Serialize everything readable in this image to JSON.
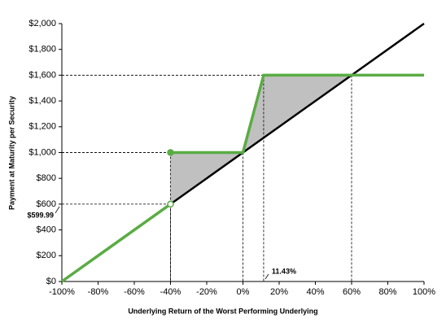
{
  "chart_data": {
    "type": "line",
    "xlabel": "Underlying Return of the Worst Performing Underlying",
    "ylabel": "Payment at Maturity per Security",
    "xlim": [
      -100,
      100
    ],
    "xticks": [
      {
        "value": -100,
        "label": "-100%"
      },
      {
        "value": -80,
        "label": "-80%"
      },
      {
        "value": -60,
        "label": "-60%"
      },
      {
        "value": -40,
        "label": "-40%"
      },
      {
        "value": -20,
        "label": "-20%"
      },
      {
        "value": 0,
        "label": "0%"
      },
      {
        "value": 20,
        "label": "20%"
      },
      {
        "value": 40,
        "label": "40%"
      },
      {
        "value": 60,
        "label": "60%"
      },
      {
        "value": 80,
        "label": "80%"
      },
      {
        "value": 100,
        "label": "100%"
      }
    ],
    "ylim": [
      0,
      2000
    ],
    "yticks": [
      {
        "value": 0,
        "label": "$0"
      },
      {
        "value": 200,
        "label": "$200"
      },
      {
        "value": 400,
        "label": "$400"
      },
      {
        "value": 600,
        "label": "$600"
      },
      {
        "value": 800,
        "label": "$800"
      },
      {
        "value": 1000,
        "label": "$1,000"
      },
      {
        "value": 1200,
        "label": "$1,200"
      },
      {
        "value": 1400,
        "label": "$1,400"
      },
      {
        "value": 1600,
        "label": "$1,600"
      },
      {
        "value": 1800,
        "label": "$1,800"
      },
      {
        "value": 2000,
        "label": "$2,000"
      }
    ],
    "grid": false,
    "series": [
      {
        "color": "#000000",
        "x": [
          -100,
          100
        ],
        "values": [
          0,
          2000
        ]
      },
      {
        "color": "#5aac44",
        "x": [
          -100,
          -40,
          -40,
          -40,
          0,
          11.43,
          100
        ],
        "values": [
          0,
          600,
          null,
          1000,
          1000,
          1600,
          1600
        ]
      }
    ],
    "points": [
      {
        "x": -40,
        "y": 600,
        "filled": false,
        "color": "#5aac44"
      },
      {
        "x": -40,
        "y": 1000,
        "filled": true,
        "color": "#5aac44"
      }
    ],
    "guides": [
      {
        "x": -40,
        "y": 1000
      },
      {
        "x": -40,
        "y": 600
      },
      {
        "x": 0,
        "y": 1000
      },
      {
        "x": 11.43,
        "y": 1600
      },
      {
        "x": 60,
        "y": 1600
      }
    ],
    "shade": {
      "color": "#c0c0c0",
      "from": -40,
      "to": 60
    },
    "annotations": [
      {
        "axis": "y",
        "value": 599.99,
        "label": "$599.99"
      },
      {
        "axis": "x",
        "value": 11.43,
        "label": "11.43%"
      }
    ]
  }
}
